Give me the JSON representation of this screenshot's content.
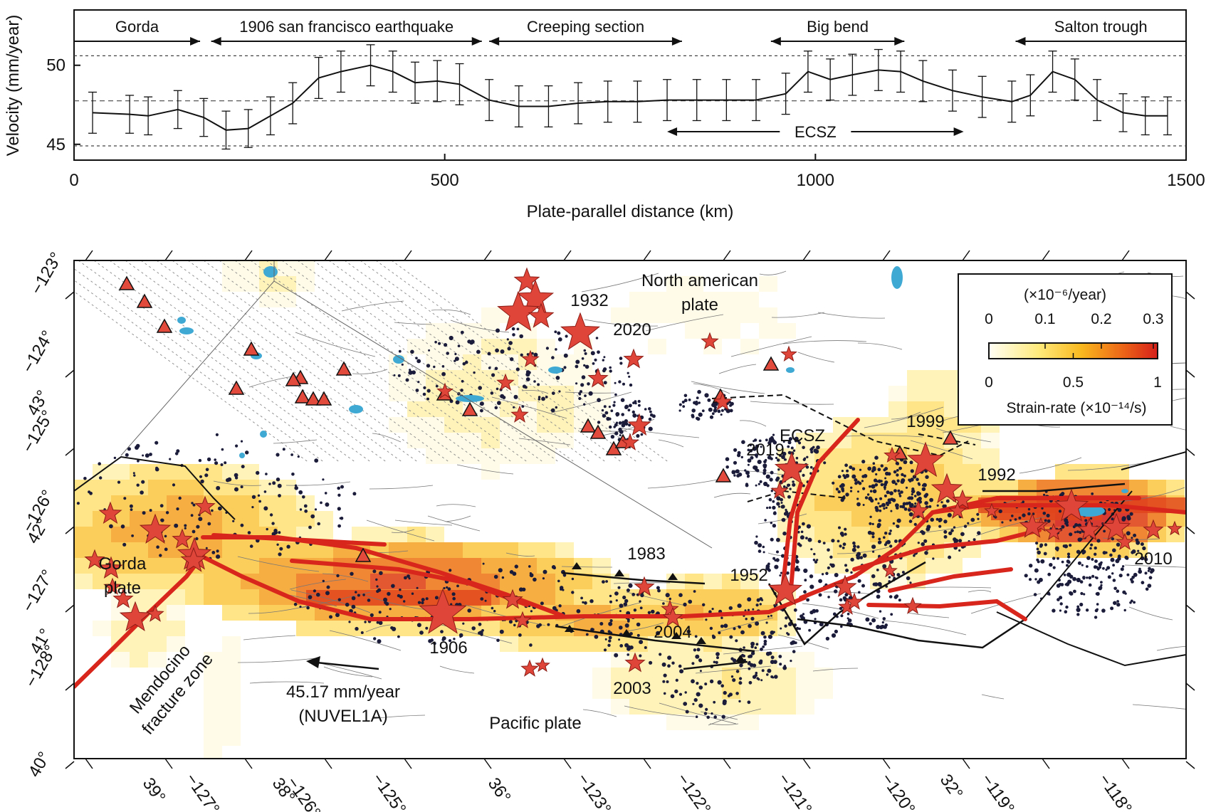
{
  "chart_data": [
    {
      "type": "line",
      "xlabel": "Plate-parallel distance (km)",
      "ylabel": "Velocity (mm/year)",
      "xlim": [
        0,
        1500
      ],
      "ylim": [
        44,
        53.5
      ],
      "x_ticks": [
        0,
        500,
        1000,
        1500
      ],
      "y_ticks": [
        45,
        50
      ],
      "reference_lines": [
        50.6,
        47.75,
        44.9
      ],
      "segments": [
        {
          "label": "Gorda",
          "x_range": [
            0,
            170
          ],
          "arrow": "right"
        },
        {
          "label": "1906 san francisco earthquake",
          "x_range": [
            185,
            550
          ],
          "arrow": "both"
        },
        {
          "label": "Creeping section",
          "x_range": [
            560,
            820
          ],
          "arrow": "both"
        },
        {
          "label": "Big bend",
          "x_range": [
            940,
            1120
          ],
          "arrow": "both"
        },
        {
          "label": "Salton trough",
          "x_range": [
            1270,
            1500
          ],
          "arrow": "left"
        },
        {
          "label": "ECSZ",
          "x_range": [
            800,
            1200
          ],
          "arrow": "both"
        }
      ],
      "series": [
        {
          "x": [
            25,
            75,
            100,
            140,
            175,
            205,
            235,
            265,
            295,
            330,
            360,
            400,
            430,
            460,
            490,
            520,
            560,
            600,
            640,
            680,
            720,
            760,
            800,
            840,
            880,
            920,
            960,
            990,
            1020,
            1050,
            1085,
            1115,
            1145,
            1185,
            1225,
            1265,
            1290,
            1320,
            1350,
            1380,
            1415,
            1445,
            1475
          ],
          "y": [
            47.0,
            46.9,
            46.8,
            47.2,
            46.7,
            45.9,
            46.0,
            46.8,
            47.6,
            49.2,
            49.6,
            50.0,
            49.6,
            48.9,
            49.0,
            48.8,
            47.8,
            47.4,
            47.4,
            47.6,
            47.7,
            47.7,
            47.8,
            47.8,
            47.8,
            47.8,
            48.2,
            49.6,
            49.1,
            49.4,
            49.7,
            49.6,
            49.0,
            48.4,
            48.0,
            47.7,
            48.1,
            49.6,
            49.1,
            47.8,
            47.0,
            46.8,
            46.8
          ],
          "err": [
            1.3,
            1.2,
            1.2,
            1.2,
            1.2,
            1.2,
            1.2,
            1.2,
            1.3,
            1.3,
            1.3,
            1.3,
            1.3,
            1.3,
            1.3,
            1.3,
            1.3,
            1.3,
            1.3,
            1.3,
            1.3,
            1.3,
            1.3,
            1.3,
            1.3,
            1.3,
            1.3,
            1.3,
            1.3,
            1.3,
            1.3,
            1.3,
            1.3,
            1.3,
            1.3,
            1.3,
            1.3,
            1.3,
            1.3,
            1.3,
            1.2,
            1.2,
            1.2
          ]
        }
      ]
    },
    {
      "type": "heatmap",
      "map_labels": {
        "north_american_plate": "North american plate",
        "pacific_plate": "Pacific plate",
        "gorda_plate": "Gorda plate",
        "mendocino": "Mendocino fracture zone",
        "ecsz": "ECSZ",
        "velocity": "45.17 mm/year",
        "velocity_model": "(NUVEL1A)"
      },
      "earthquake_labels": [
        "1932",
        "2020",
        "1999",
        "2019",
        "1992",
        "2010",
        "1983",
        "1952",
        "2004",
        "1906",
        "2003"
      ],
      "latitude_ticks": [
        "40°",
        "41°",
        "42°",
        "43°"
      ],
      "longitude_ticks_left": [
        "−123°",
        "−124°",
        "−125°",
        "−126°",
        "−127°",
        "−128°"
      ],
      "bottom_ticks": [
        "39°",
        "−127°",
        "38°",
        "−126°",
        "−125°",
        "36°",
        "−123°",
        "−122°",
        "−121°",
        "−120°",
        "32°",
        "−119°",
        "−118°"
      ],
      "colorbar": {
        "title": "(×10⁻⁶/year)",
        "top_ticks": [
          "0",
          "0.1",
          "0.2",
          "0.3"
        ],
        "bottom_ticks": [
          "0",
          "0.5",
          "1"
        ],
        "label": "Strain-rate (×10⁻¹⁴/s)",
        "colors": [
          "#fffef5",
          "#ffe97a",
          "#f9b81e",
          "#ec6317",
          "#d41f1a"
        ]
      },
      "colors": {
        "fault": "#d8261c",
        "star": "#e0453a",
        "lake": "#3fa9d4",
        "seismicity": "#1b1b3a"
      }
    }
  ]
}
